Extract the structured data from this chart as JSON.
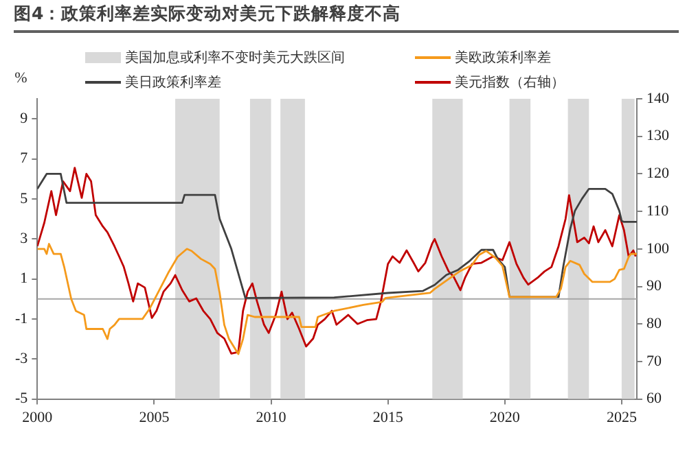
{
  "chart_data": {
    "type": "line",
    "title": "图4：政策利率差实际变动对美元下跌解释度不高",
    "ylabel": "%",
    "legend": "top",
    "grid": false,
    "marker": "none",
    "xlim": [
      2000,
      2025.65
    ],
    "xticks": [
      2000,
      2005,
      2010,
      2015,
      2020,
      2025
    ],
    "ylim": [
      -5,
      10
    ],
    "yticks": [
      -5,
      -3,
      -1,
      1,
      3,
      5,
      7,
      9
    ],
    "y2lim": [
      60,
      140
    ],
    "y2ticks": [
      60,
      70,
      80,
      90,
      100,
      110,
      120,
      130,
      140
    ],
    "bands": [
      {
        "axis": "x",
        "from": 2005.9,
        "to": 2007.8,
        "color": "#d9d9d9",
        "label": "美国加息或利率不变时美元大跌区间"
      },
      {
        "axis": "x",
        "from": 2009.1,
        "to": 2010.0,
        "color": "#d9d9d9"
      },
      {
        "axis": "x",
        "from": 2010.4,
        "to": 2011.45,
        "color": "#d9d9d9"
      },
      {
        "axis": "x",
        "from": 2016.9,
        "to": 2018.2,
        "color": "#d9d9d9"
      },
      {
        "axis": "x",
        "from": 2020.2,
        "to": 2021.1,
        "color": "#d9d9d9"
      },
      {
        "axis": "x",
        "from": 2022.7,
        "to": 2023.6,
        "color": "#d9d9d9"
      },
      {
        "axis": "x",
        "from": 2025.0,
        "to": 2025.55,
        "color": "#d9d9d9"
      }
    ],
    "ref_lines": [
      {
        "axis": "y",
        "value": 0,
        "color": "#a6a6a6"
      }
    ],
    "series": [
      {
        "name": "美欧政策利率差",
        "color": "#f59a1b",
        "x": [
          2000,
          2000.3,
          2000.4,
          2000.5,
          2000.7,
          2001.0,
          2001.15,
          2001.45,
          2001.65,
          2002.0,
          2002.1,
          2002.8,
          2003.0,
          2003.1,
          2003.3,
          2003.5,
          2004.5,
          2004.8,
          2005.2,
          2005.6,
          2006.0,
          2006.4,
          2006.6,
          2007.0,
          2007.4,
          2007.6,
          2007.8,
          2008.0,
          2008.2,
          2008.6,
          2008.8,
          2009.0,
          2009.3,
          2011.2,
          2011.3,
          2011.9,
          2012.0,
          2012.7,
          2013.95,
          2014.75,
          2014.9,
          2016.8,
          2017.0,
          2017.3,
          2017.6,
          2018.1,
          2018.6,
          2018.9,
          2019.2,
          2019.6,
          2019.9,
          2020.2,
          2022.2,
          2022.4,
          2022.6,
          2022.8,
          2023.2,
          2023.4,
          2023.75,
          2024.5,
          2024.7,
          2024.9,
          2025.1,
          2025.3,
          2025.4,
          2025.65
        ],
        "values": [
          2.5,
          2.5,
          2.25,
          2.75,
          2.25,
          2.25,
          1.6,
          0,
          -0.6,
          -0.8,
          -1.5,
          -1.5,
          -2.0,
          -1.5,
          -1.3,
          -1.0,
          -1.0,
          -0.5,
          0.4,
          1.3,
          2.1,
          2.5,
          2.4,
          2.0,
          1.75,
          1.5,
          0.3,
          -1.3,
          -2.0,
          -2.75,
          -2.0,
          -0.8,
          -0.9,
          -0.9,
          -1.4,
          -1.4,
          -0.9,
          -0.6,
          -0.3,
          -0.15,
          0.05,
          0.3,
          0.5,
          0.75,
          1.0,
          1.4,
          1.7,
          2.2,
          2.4,
          2.05,
          1.65,
          0.1,
          0.1,
          0.5,
          1.6,
          1.9,
          1.7,
          1.25,
          0.85,
          0.85,
          1.0,
          1.45,
          1.5,
          2.1,
          2.25,
          2.25
        ]
      },
      {
        "name": "美日政策利率差",
        "color": "#404040",
        "x": [
          2000,
          2000.4,
          2000.7,
          2001.0,
          2001.25,
          2006.2,
          2006.3,
          2007.6,
          2007.8,
          2008.3,
          2008.9,
          2012.7,
          2015.0,
          2016.5,
          2017.0,
          2017.5,
          2018.0,
          2018.5,
          2019.0,
          2019.5,
          2019.7,
          2020.0,
          2020.2,
          2022.3,
          2022.5,
          2022.8,
          2023.0,
          2023.3,
          2023.6,
          2024.3,
          2024.6,
          2024.9,
          2025.0,
          2025.1,
          2025.65
        ],
        "values": [
          5.5,
          6.25,
          6.25,
          6.25,
          4.8,
          4.8,
          5.2,
          5.2,
          4.0,
          2.5,
          0.05,
          0.07,
          0.3,
          0.4,
          0.7,
          1.2,
          1.45,
          1.9,
          2.45,
          2.45,
          2.0,
          1.6,
          0.1,
          0.1,
          1.6,
          3.5,
          4.4,
          5.0,
          5.5,
          5.5,
          5.25,
          4.4,
          3.9,
          3.85,
          3.85
        ]
      },
      {
        "name": "美元指数（右轴）",
        "color": "#c00000",
        "axis": "y2",
        "x": [
          2000.0,
          2000.3,
          2000.6,
          2000.8,
          2001.1,
          2001.4,
          2001.6,
          2001.9,
          2002.1,
          2002.3,
          2002.5,
          2002.8,
          2003.0,
          2003.3,
          2003.5,
          2003.7,
          2003.9,
          2004.1,
          2004.3,
          2004.6,
          2004.9,
          2005.1,
          2005.4,
          2005.7,
          2005.9,
          2006.2,
          2006.5,
          2006.8,
          2007.1,
          2007.4,
          2007.7,
          2008.0,
          2008.3,
          2008.6,
          2008.8,
          2009.0,
          2009.2,
          2009.4,
          2009.7,
          2009.9,
          2010.2,
          2010.45,
          2010.7,
          2010.9,
          2011.2,
          2011.5,
          2011.8,
          2012.0,
          2012.3,
          2012.6,
          2012.8,
          2013.3,
          2013.7,
          2014.1,
          2014.5,
          2014.7,
          2015.0,
          2015.2,
          2015.5,
          2015.8,
          2016.1,
          2016.3,
          2016.6,
          2016.9,
          2017.0,
          2017.3,
          2017.6,
          2017.8,
          2018.1,
          2018.3,
          2018.6,
          2019.0,
          2019.5,
          2019.9,
          2020.2,
          2020.5,
          2020.8,
          2021.0,
          2021.4,
          2021.7,
          2022.0,
          2022.3,
          2022.6,
          2022.75,
          2022.9,
          2023.1,
          2023.4,
          2023.6,
          2023.8,
          2024.0,
          2024.3,
          2024.6,
          2024.9,
          2025.1,
          2025.3,
          2025.5,
          2025.6
        ],
        "values": [
          100.7,
          107,
          115.4,
          109,
          118,
          115.4,
          121.6,
          113.6,
          120,
          118,
          109,
          106,
          104.4,
          100.7,
          98,
          95.2,
          90.8,
          86,
          90.8,
          89.7,
          81.6,
          83.5,
          88.6,
          90.8,
          93,
          89,
          86,
          86.8,
          83.5,
          81.3,
          77.6,
          76.1,
          72.1,
          72.5,
          83.5,
          88.6,
          90.8,
          86,
          79.8,
          77.6,
          82.4,
          88.6,
          81.3,
          83,
          78.7,
          74,
          76.1,
          79.8,
          81.3,
          83.5,
          79.8,
          82.4,
          80,
          81,
          81.3,
          86,
          96,
          98,
          96.3,
          99.6,
          96.3,
          94,
          96.3,
          101.5,
          102.6,
          98,
          94,
          92.7,
          89,
          92.3,
          96,
          96.3,
          98,
          97,
          101.8,
          96,
          92.3,
          90.5,
          92.3,
          94,
          95.2,
          100.7,
          108,
          114.3,
          109,
          101.8,
          103,
          101.5,
          106,
          101.8,
          105,
          100.7,
          109,
          105,
          98,
          99.6,
          98
        ]
      }
    ]
  }
}
